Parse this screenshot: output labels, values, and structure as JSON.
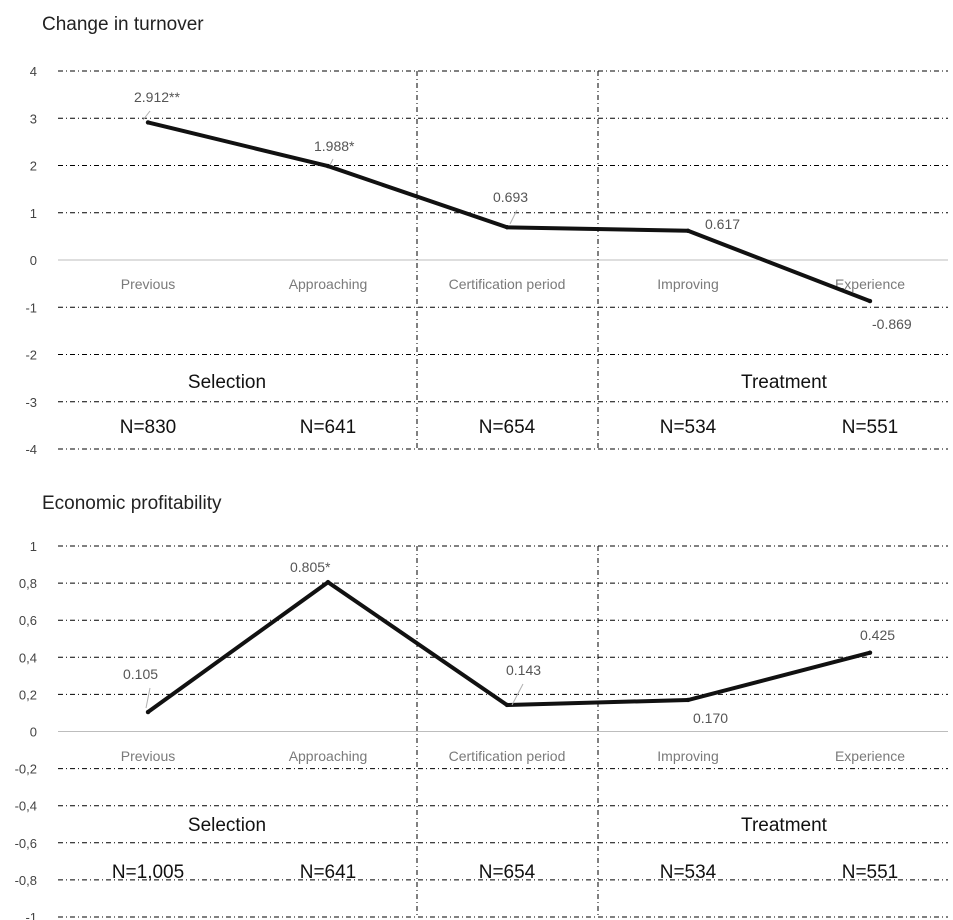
{
  "chart_data": [
    {
      "type": "line",
      "title": "Change in turnover",
      "ylim": [
        -4,
        4
      ],
      "yticks": [
        "4",
        "3",
        "2",
        "1",
        "0",
        "-1",
        "-2",
        "-3",
        "-4"
      ],
      "ytick_values": [
        4,
        3,
        2,
        1,
        0,
        -1,
        -2,
        -3,
        -4
      ],
      "categories": [
        "Previous",
        "Approaching",
        "Certification period",
        "Improving",
        "Experience"
      ],
      "values": [
        2.912,
        1.988,
        0.693,
        0.617,
        -0.869
      ],
      "data_labels": [
        "2.912**",
        "1.988*",
        "0.693",
        "0.617",
        "-0.869"
      ],
      "group_labels": [
        "Selection",
        "Treatment"
      ],
      "n_labels": [
        "N=830",
        "N=641",
        "N=654",
        "N=534",
        "N=551"
      ],
      "grid": true
    },
    {
      "type": "line",
      "title": "Economic profitability",
      "ylim": [
        -1,
        1
      ],
      "yticks": [
        "1",
        "0,8",
        "0,6",
        "0,4",
        "0,2",
        "0",
        "-0,2",
        "-0,4",
        "-0,6",
        "-0,8",
        "-1"
      ],
      "ytick_values": [
        1,
        0.8,
        0.6,
        0.4,
        0.2,
        0,
        -0.2,
        -0.4,
        -0.6,
        -0.8,
        -1
      ],
      "categories": [
        "Previous",
        "Approaching",
        "Certification period",
        "Improving",
        "Experience"
      ],
      "values": [
        0.105,
        0.805,
        0.143,
        0.17,
        0.425
      ],
      "data_labels": [
        "0.105",
        "0.805*",
        "0.143",
        "0.170",
        "0.425"
      ],
      "group_labels": [
        "Selection",
        "Treatment"
      ],
      "n_labels": [
        "N=1,005",
        "N=641",
        "N=654",
        "N=534",
        "N=551"
      ],
      "grid": true
    }
  ]
}
